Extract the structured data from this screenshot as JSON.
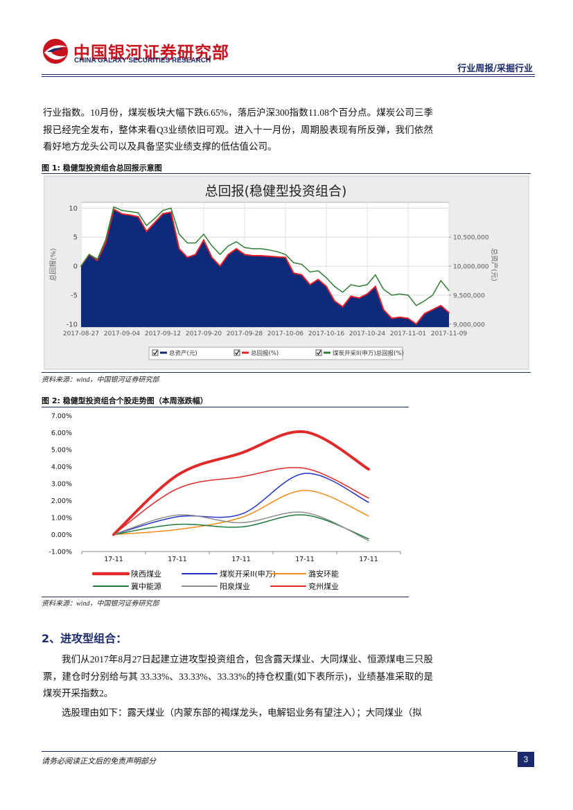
{
  "header": {
    "title": "中国银河证券研究部",
    "subtitle": "CHINA GALAXY SECURITIES RESEARCH",
    "section": "行业周报/采掘行业"
  },
  "intro": "行业指数。10月份，煤炭板块大幅下跌6.65%，落后沪深300指数11.08个百分点。煤炭公司三季报已经完全发布，整体来看Q3业绩依旧可观。进入十一月份，周期股表现有所反弹，我们依然看好地方龙头公司以及具备坚实业绩支撑的低估值公司。",
  "figures": [
    {
      "caption": "图 1: 稳健型投资组合总回报示意图",
      "source": "资料来源：wind，中国银河证券研究部"
    },
    {
      "caption": "图 2: 稳健型投资组合个股走势图（本周涨跌幅）",
      "source": "资料来源：wind，中国银河证券研究部"
    }
  ],
  "section": {
    "heading": "2、进攻型组合：",
    "paragraphs": [
      "我们从2017年8月27日起建立进攻型投资组合，包含露天煤业、大同煤业、恒源煤电三只股票，建仓时分别给与其 33.33%、33.33%、33.33%的持仓权重(如下表所示)，业绩基准采取的是煤炭开采指数2。",
      "选股理由如下：露天煤业（内蒙东部的褐煤龙头，电解铝业务有望注入）；大同煤业（拟"
    ]
  },
  "footer": {
    "disclaimer": "请务必阅读正文后的免责声明部分",
    "page": 3
  },
  "chart_data": [
    {
      "type": "line",
      "title": "总回报(稳健型投资组合)",
      "ylabel": "总回报(%)",
      "y2label": "总资产(元)",
      "categories": [
        "2017-08-27",
        null,
        null,
        null,
        null,
        "2017-09-04",
        null,
        null,
        null,
        null,
        "2017-09-12",
        null,
        null,
        null,
        null,
        "2017-09-20",
        null,
        null,
        null,
        null,
        "2017-09-28",
        null,
        null,
        null,
        null,
        "2017-10-06",
        null,
        null,
        null,
        null,
        "2017-10-16",
        null,
        null,
        null,
        null,
        "2017-10-24",
        null,
        null,
        null,
        null,
        "2017-11-01",
        null,
        null,
        null,
        null,
        "2017-11-09"
      ],
      "ylim": [
        -10.5,
        11
      ],
      "yticks": [
        -10,
        -5,
        0,
        5,
        10
      ],
      "y2lim": [
        8950000,
        11100000
      ],
      "y2ticks": [
        {
          "value": 9000000,
          "label": "9,000,000"
        },
        {
          "value": 9500000,
          "label": "9,500,000"
        },
        {
          "value": 10000000,
          "label": "10,000,000"
        },
        {
          "value": 10500000,
          "label": "10,500,000"
        }
      ],
      "grid": true,
      "legend": "bottom",
      "series": [
        {
          "name": "总资产(元)",
          "type": "area",
          "axis": "y2",
          "color": "#0b2a7a",
          "width": 1,
          "values": [
            10000000,
            10200000,
            10100000,
            10400000,
            10980000,
            10900000,
            10880000,
            10850000,
            10600000,
            10750000,
            10900000,
            10930000,
            10300000,
            10150000,
            10200000,
            10450000,
            10150000,
            10000000,
            10200000,
            10300000,
            10200000,
            10180000,
            10180000,
            10170000,
            10160000,
            10150000,
            9880000,
            9850000,
            9680000,
            9770000,
            9650000,
            9400000,
            9300000,
            9480000,
            9450000,
            9520000,
            9650000,
            9250000,
            9100000,
            9120000,
            9100000,
            9000000,
            9180000,
            9250000,
            9320000,
            9200000
          ]
        },
        {
          "name": "总回报(%)",
          "type": "line",
          "axis": "y",
          "color": "#e8202a",
          "width": 2,
          "values": [
            0,
            2,
            1,
            4,
            9.8,
            9,
            8.8,
            8.5,
            6,
            7.5,
            9,
            9.3,
            3,
            1.5,
            2,
            4.5,
            1.5,
            0,
            2,
            3,
            2,
            1.8,
            1.8,
            1.7,
            1.6,
            1.5,
            -1.2,
            -1.5,
            -3.2,
            -2.3,
            -3.5,
            -6,
            -7,
            -5.2,
            -5.5,
            -4.8,
            -3.5,
            -7.5,
            -9,
            -8.8,
            -9,
            -10,
            -8.2,
            -7.5,
            -6.8,
            -8
          ]
        },
        {
          "name": "煤炭开采II(申万)总回报(%)",
          "type": "line",
          "axis": "y",
          "color": "#2e7d32",
          "width": 1.5,
          "values": [
            0,
            2,
            1.2,
            4.5,
            10.2,
            9.6,
            9.4,
            9.2,
            7,
            8.2,
            9.6,
            10,
            5.5,
            4,
            4,
            5.5,
            3.5,
            2,
            3.5,
            4.2,
            3.2,
            3,
            3,
            2.8,
            2.5,
            2,
            0.6,
            0.3,
            -1,
            -0.8,
            -2,
            -3.5,
            -4.5,
            -3.2,
            -3.5,
            -3.2,
            -1.5,
            -4,
            -5,
            -4.8,
            -5,
            -6.8,
            -6,
            -5,
            -2.5,
            -4.2
          ]
        }
      ]
    },
    {
      "type": "line",
      "smooth": true,
      "legend": "bottom",
      "grid": false,
      "categories": [
        "17-11",
        "17-11",
        "17-11",
        "17-11",
        "17-11"
      ],
      "ylim": [
        -1,
        7
      ],
      "yticks": [
        {
          "value": -1,
          "label": "-1.00%"
        },
        {
          "value": 0,
          "label": "0.00%"
        },
        {
          "value": 1,
          "label": "1.00%"
        },
        {
          "value": 2,
          "label": "2.00%"
        },
        {
          "value": 3,
          "label": "3.00%"
        },
        {
          "value": 4,
          "label": "4.00%"
        },
        {
          "value": 5,
          "label": "5.00%"
        },
        {
          "value": 6,
          "label": "6.00%"
        },
        {
          "value": 7,
          "label": "7.00%"
        }
      ],
      "series": [
        {
          "name": "陕西煤业",
          "color": "#e02a2a",
          "width": 4,
          "values": [
            0,
            3.5,
            4.8,
            6.05,
            3.85
          ]
        },
        {
          "name": "煤炭开采II(申万)",
          "color": "#1f2fc8",
          "width": 1.5,
          "values": [
            0,
            1.05,
            1.2,
            3.6,
            1.9
          ]
        },
        {
          "name": "潞安环能",
          "color": "#f28c1c",
          "width": 1.5,
          "values": [
            0,
            0.3,
            1.0,
            2.6,
            1.1
          ]
        },
        {
          "name": "冀中能源",
          "color": "#1e7a3a",
          "width": 1.5,
          "values": [
            0,
            0.6,
            0.45,
            1.15,
            -0.25
          ]
        },
        {
          "name": "阳泉煤业",
          "color": "#8c8c8c",
          "width": 1.5,
          "values": [
            0,
            1.15,
            0.7,
            1.3,
            -0.35
          ]
        },
        {
          "name": "兖州煤业",
          "color": "#e02a2a",
          "width": 1.5,
          "values": [
            0,
            2.7,
            3.4,
            3.9,
            2.15
          ]
        }
      ]
    }
  ]
}
